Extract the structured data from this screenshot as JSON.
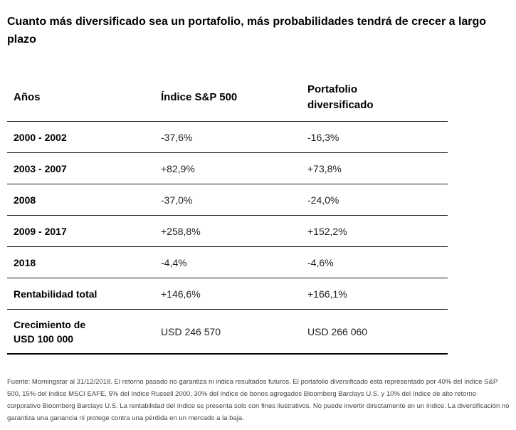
{
  "title": "Cuanto más diversificado sea un portafolio, más probabilidades tendrá de crecer a largo plazo",
  "table": {
    "headers": [
      "Años",
      "Índice S&P 500",
      "Portafolio diversificado"
    ],
    "rows": [
      [
        "2000 - 2002",
        "-37,6%",
        "-16,3%"
      ],
      [
        "2003 - 2007",
        "+82,9%",
        "+73,8%"
      ],
      [
        "2008",
        "-37,0%",
        "-24,0%"
      ],
      [
        "2009 - 2017",
        "+258,8%",
        "+152,2%"
      ],
      [
        "2018",
        "-4,4%",
        "-4,6%"
      ],
      [
        "Rentabilidad total",
        "+146,6%",
        "+166,1%"
      ],
      [
        "Crecimiento de USD 100 000",
        "USD 246 570",
        "USD 266 060"
      ]
    ]
  },
  "footnote": "Fuente: Morningstar al 31/12/2018. El retorno pasado no garantiza ni indica resultados futuros. El portafolio diversificado está representado por 40% del índice S&P 500, 15% del índice MSCI EAFE, 5% del índice Russell 2000, 30% del índice de bonos agregados Bloomberg Barclays U.S. y 10% del índice de alto retorno corporativo Bloomberg Barclays U.S. La rentabilidad del índice se presenta solo con fines ilustrativos. No puede invertir directamente en un índice. La diversificación no garantiza una ganancia ni protege contra una pérdida en un mercado a la baja."
}
